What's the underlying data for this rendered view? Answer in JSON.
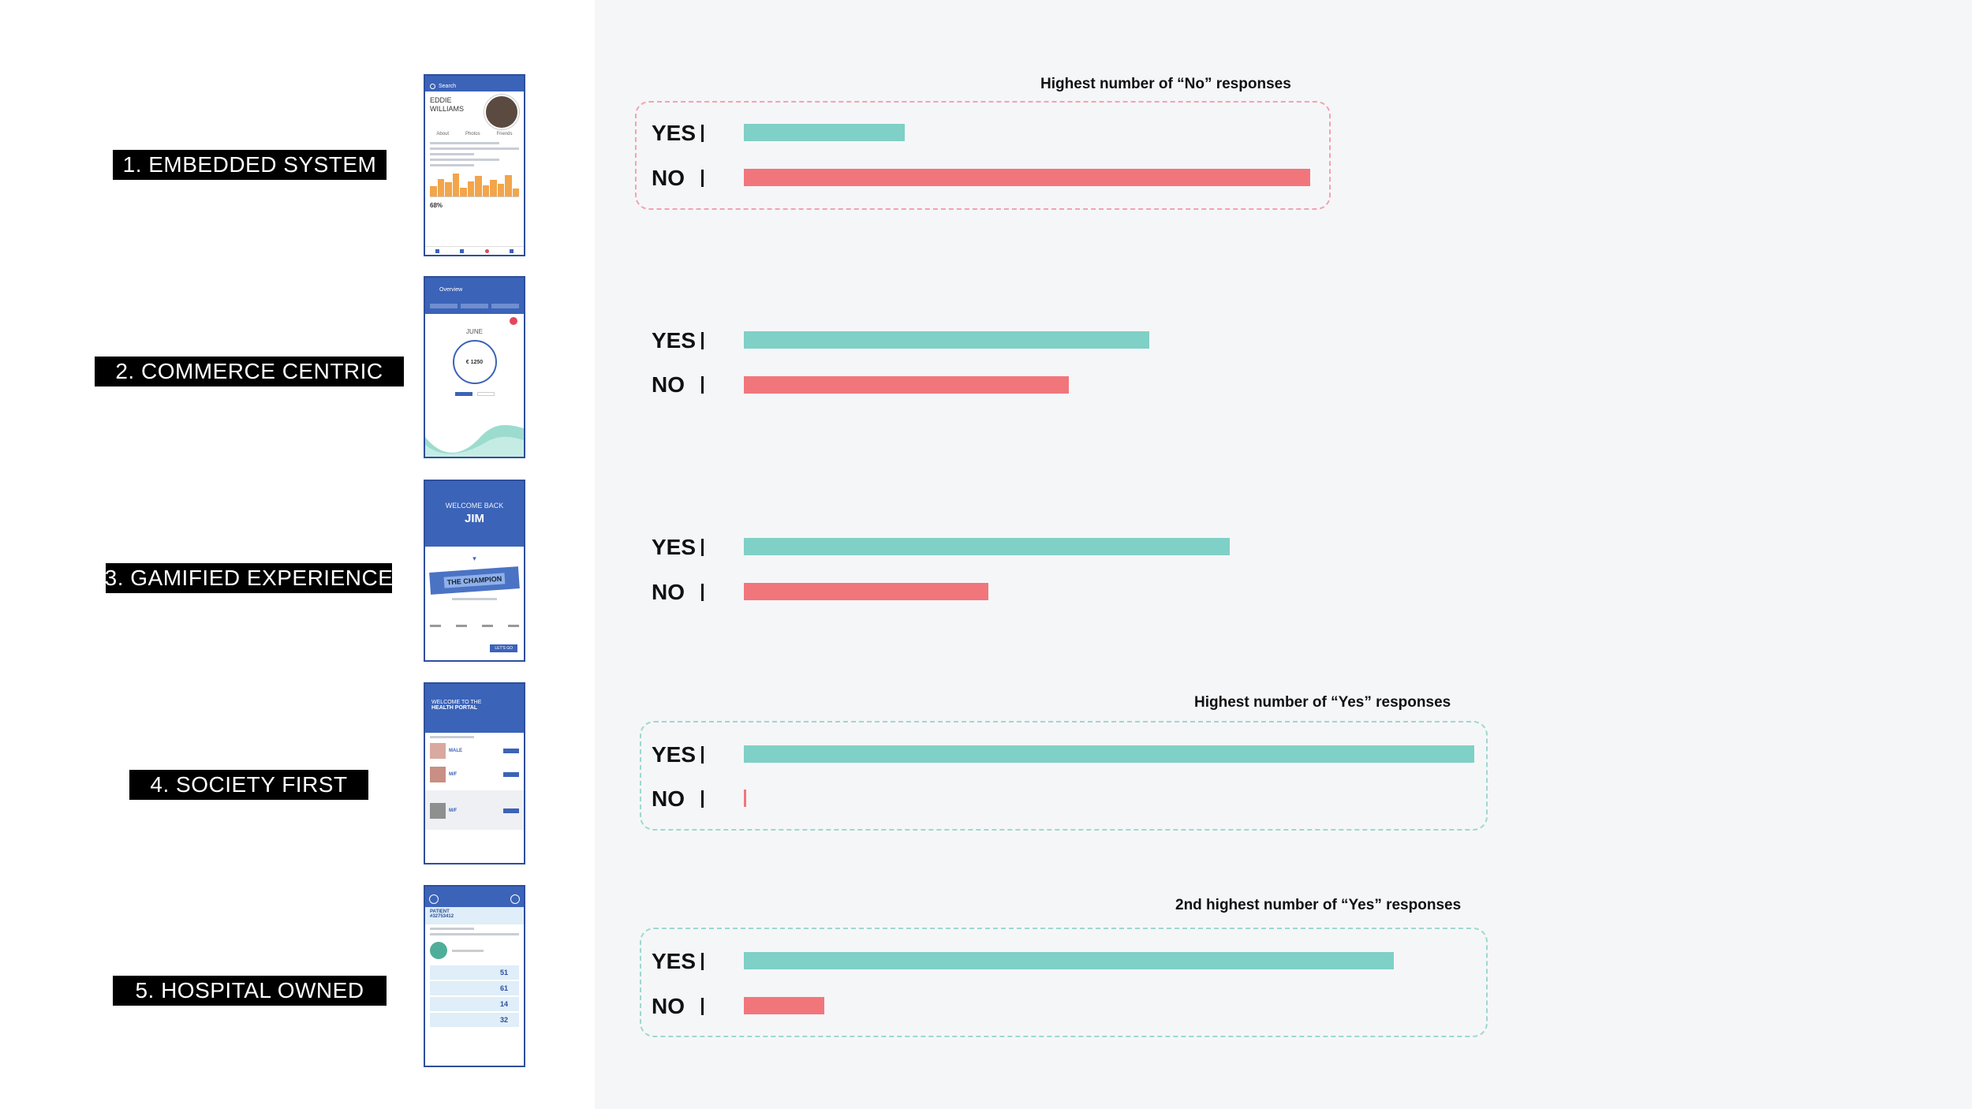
{
  "colors": {
    "yes": "#7fd0c6",
    "no": "#f1767c",
    "callout_no": "#f3a3b0",
    "callout_yes": "#9fd7cf"
  },
  "labels": {
    "yes": "YES",
    "no": "NO"
  },
  "rows": [
    {
      "label": "1. EMBEDDED SYSTEM"
    },
    {
      "label": "2. COMMERCE CENTRIC"
    },
    {
      "label": "3. GAMIFIED EXPERIENCE"
    },
    {
      "label": "4. SOCIETY FIRST"
    },
    {
      "label": "5. HOSPITAL OWNED"
    }
  ],
  "thumbnails": {
    "t1": {
      "search": "Search",
      "name_line1": "EDDIE",
      "name_line2": "WILLIAMS",
      "cols": [
        "About",
        "Photos",
        "Friends"
      ],
      "stat": "68%"
    },
    "t2": {
      "title": "Overview",
      "month": "JUNE",
      "amount": "€ 1250"
    },
    "t3": {
      "welcome": "WELCOME BACK",
      "name": "JIM",
      "banner": "THE CHAMPION",
      "cta": "LET'S GO"
    },
    "t4": {
      "welcome_line1": "WELCOME TO THE",
      "welcome_line2": "HEALTH PORTAL",
      "tags": [
        "MALE",
        "M/F",
        "M/F"
      ]
    },
    "t5": {
      "patient": "PATIENT",
      "id": "#32753412",
      "scores": [
        "51",
        "61",
        "14",
        "32"
      ]
    }
  },
  "callouts": [
    {
      "text": "Highest number of “No” responses",
      "type": "no"
    },
    {
      "text": "Highest number of “Yes” responses",
      "type": "yes"
    },
    {
      "text": "2nd highest number of “Yes” responses",
      "type": "yes"
    }
  ],
  "chart_data": {
    "type": "bar",
    "orientation": "horizontal",
    "categories": [
      "1. EMBEDDED SYSTEM",
      "2. COMMERCE CENTRIC",
      "3. GAMIFIED EXPERIENCE",
      "4. SOCIETY FIRST",
      "5. HOSPITAL OWNED"
    ],
    "series": [
      {
        "name": "YES",
        "values": [
          22,
          55.5,
          66.5,
          100,
          89
        ]
      },
      {
        "name": "NO",
        "values": [
          77.5,
          44.5,
          33.5,
          0.3,
          11
        ]
      }
    ],
    "scale_max": 100,
    "axis_visible": false,
    "grid": false
  }
}
